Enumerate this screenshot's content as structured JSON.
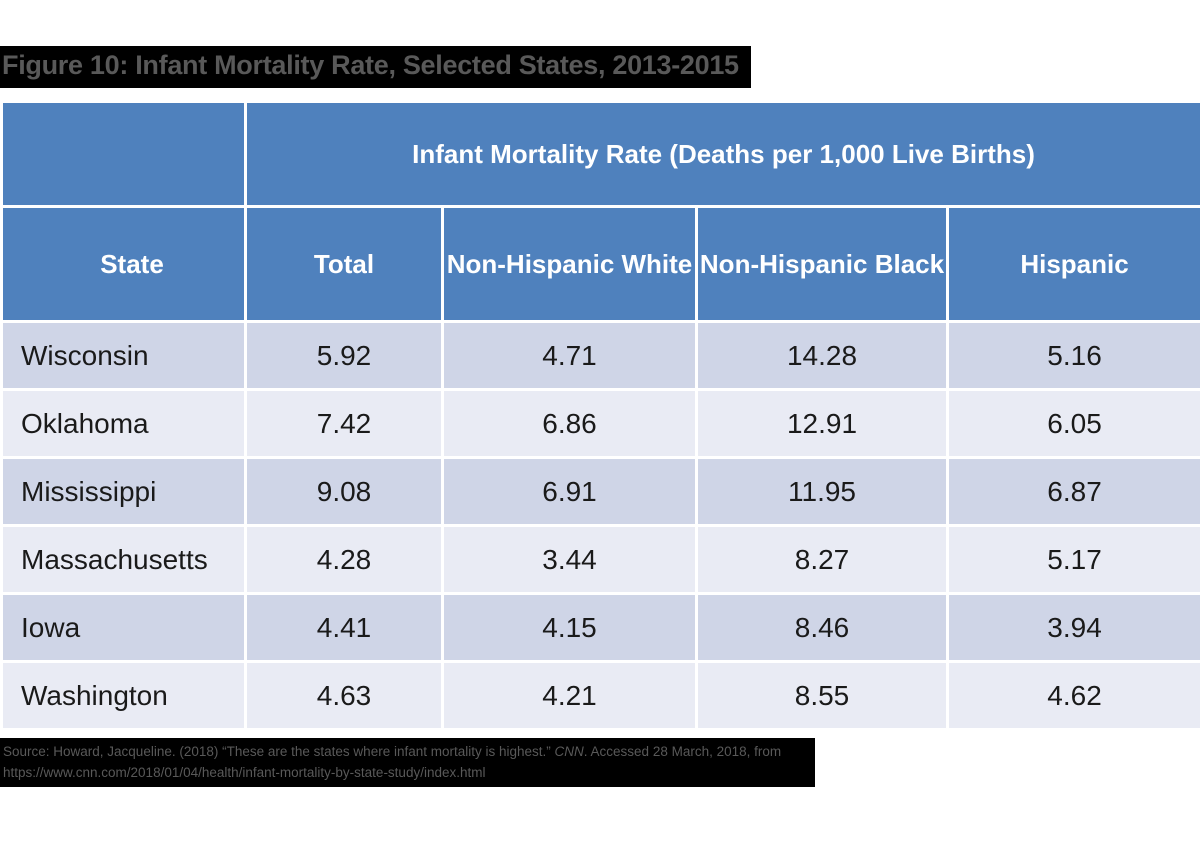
{
  "title": "Figure 10: Infant Mortality Rate, Selected States, 2013-2015",
  "table": {
    "span_header": "Infant Mortality Rate (Deaths per 1,000 Live Births)",
    "columns": [
      "State",
      "Total",
      "Non-Hispanic White",
      "Non-Hispanic Black",
      "Hispanic"
    ],
    "rows": [
      {
        "state": "Wisconsin",
        "values": [
          "5.92",
          "4.71",
          "14.28",
          "5.16"
        ]
      },
      {
        "state": "Oklahoma",
        "values": [
          "7.42",
          "6.86",
          "12.91",
          "6.05"
        ]
      },
      {
        "state": "Mississippi",
        "values": [
          "9.08",
          "6.91",
          "11.95",
          "6.87"
        ]
      },
      {
        "state": "Massachusetts",
        "values": [
          "4.28",
          "3.44",
          "8.27",
          "5.17"
        ]
      },
      {
        "state": "Iowa",
        "values": [
          "4.41",
          "4.15",
          "8.46",
          "3.94"
        ]
      },
      {
        "state": "Washington",
        "values": [
          "4.63",
          "4.21",
          "8.55",
          "4.62"
        ]
      }
    ]
  },
  "source": {
    "line1_pre": "Source: Howard, Jacqueline. (2018) “These are the states where infant mortality is highest.” ",
    "line1_italic": "CNN",
    "line1_post": ". Accessed 28 March, 2018, from",
    "line2": "https://www.cnn.com/2018/01/04/health/infant-mortality-by-state-study/index.html"
  },
  "colors": {
    "header_blue": "#4F81BD",
    "band_dark": "#CFD5E7",
    "band_light": "#E9EBF4",
    "title_text": "#595959",
    "highlight_bg": "#000000"
  },
  "chart_data": {
    "type": "table",
    "title": "Figure 10: Infant Mortality Rate, Selected States, 2013-2015",
    "unit": "Deaths per 1,000 Live Births",
    "columns": [
      "State",
      "Total",
      "Non-Hispanic White",
      "Non-Hispanic Black",
      "Hispanic"
    ],
    "rows": [
      [
        "Wisconsin",
        5.92,
        4.71,
        14.28,
        5.16
      ],
      [
        "Oklahoma",
        7.42,
        6.86,
        12.91,
        6.05
      ],
      [
        "Mississippi",
        9.08,
        6.91,
        11.95,
        6.87
      ],
      [
        "Massachusetts",
        4.28,
        3.44,
        8.27,
        5.17
      ],
      [
        "Iowa",
        4.41,
        4.15,
        8.46,
        3.94
      ],
      [
        "Washington",
        4.63,
        4.21,
        8.55,
        4.62
      ]
    ]
  }
}
